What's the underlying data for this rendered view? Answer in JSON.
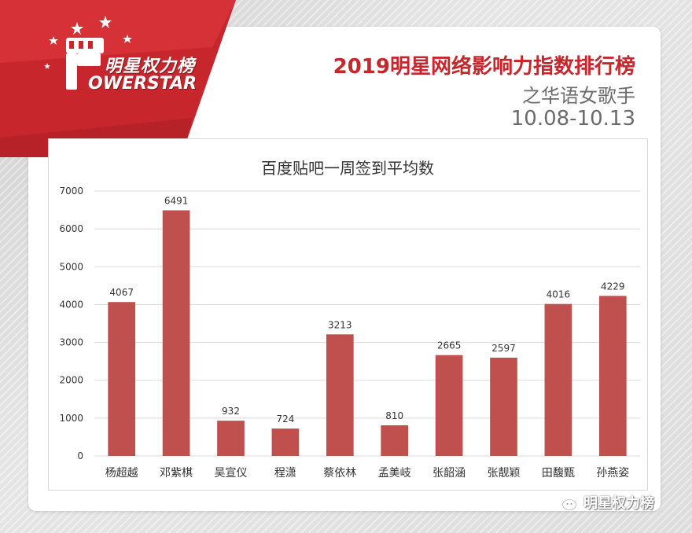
{
  "header": {
    "logo_cn": "明星权力榜",
    "logo_en": "OWERSTAR",
    "title": "2019明星网络影响力指数排行榜",
    "subtitle": "之华语女歌手",
    "date_range": "10.08-10.13"
  },
  "watermark": {
    "text": "明星权力榜",
    "icon": "wechat-icon"
  },
  "colors": {
    "brand_red": "#c8262d",
    "bar": "#c0504d",
    "grid": "#d9d9d9"
  },
  "chart_data": {
    "type": "bar",
    "title": "百度贴吧一周签到平均数",
    "categories": [
      "杨超越",
      "邓紫棋",
      "吴宣仪",
      "程潇",
      "蔡依林",
      "孟美岐",
      "张韶涵",
      "张靓颖",
      "田馥甄",
      "孙燕姿"
    ],
    "values": [
      4067,
      6491,
      932,
      724,
      3213,
      810,
      2665,
      2597,
      4016,
      4229
    ],
    "ylim": [
      0,
      7000
    ],
    "yticks": [
      0,
      1000,
      2000,
      3000,
      4000,
      5000,
      6000,
      7000
    ],
    "grid": true,
    "data_labels": true
  }
}
